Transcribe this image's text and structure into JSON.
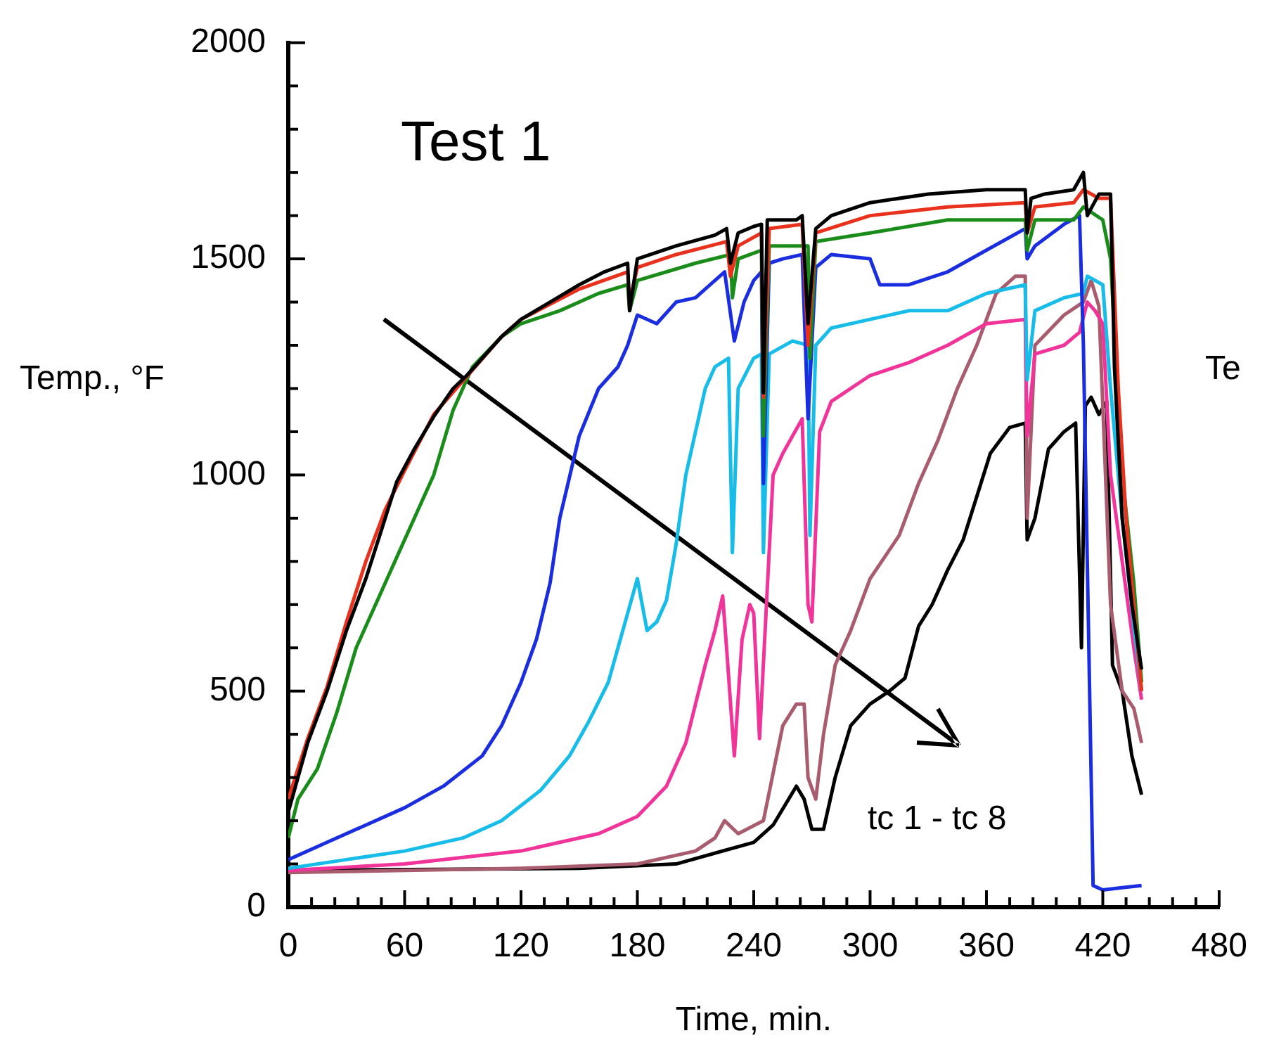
{
  "chart_data": {
    "type": "line",
    "title": "Test 1",
    "xlabel": "Time, min.",
    "ylabel": "Temp., °F",
    "annotations": [
      "tc 1 - tc 8",
      "Te"
    ],
    "xlim": [
      0,
      480
    ],
    "ylim": [
      0,
      2000
    ],
    "xticks": [
      0,
      {
        "value": 12,
        "label": null
      },
      {
        "value": 24,
        "label": null
      },
      {
        "value": 36,
        "label": null
      },
      {
        "value": 48,
        "label": null
      },
      60,
      {
        "value": 72,
        "label": null
      },
      {
        "value": 84,
        "label": null
      },
      {
        "value": 96,
        "label": null
      },
      {
        "value": 108,
        "label": null
      },
      120,
      {
        "value": 132,
        "label": null
      },
      {
        "value": 144,
        "label": null
      },
      {
        "value": 156,
        "label": null
      },
      {
        "value": 168,
        "label": null
      },
      180,
      {
        "value": 192,
        "label": null
      },
      {
        "value": 204,
        "label": null
      },
      {
        "value": 216,
        "label": null
      },
      {
        "value": 228,
        "label": null
      },
      240,
      {
        "value": 252,
        "label": null
      },
      {
        "value": 264,
        "label": null
      },
      {
        "value": 276,
        "label": null
      },
      {
        "value": 288,
        "label": null
      },
      300,
      {
        "value": 312,
        "label": null
      },
      {
        "value": 324,
        "label": null
      },
      {
        "value": 336,
        "label": null
      },
      {
        "value": 348,
        "label": null
      },
      360,
      {
        "value": 372,
        "label": null
      },
      {
        "value": 384,
        "label": null
      },
      {
        "value": 396,
        "label": null
      },
      {
        "value": 408,
        "label": null
      },
      420,
      {
        "value": 432,
        "label": null
      },
      {
        "value": 444,
        "label": null
      },
      {
        "value": 456,
        "label": null
      },
      {
        "value": 468,
        "label": null
      },
      480
    ],
    "yticks": [
      0,
      {
        "value": 100,
        "label": null
      },
      {
        "value": 200,
        "label": null
      },
      {
        "value": 300,
        "label": null
      },
      {
        "value": 400,
        "label": null
      },
      500,
      {
        "value": 600,
        "label": null
      },
      {
        "value": 700,
        "label": null
      },
      {
        "value": 800,
        "label": null
      },
      {
        "value": 900,
        "label": null
      },
      1000,
      {
        "value": 1100,
        "label": null
      },
      {
        "value": 1200,
        "label": null
      },
      {
        "value": 1300,
        "label": null
      },
      {
        "value": 1400,
        "label": null
      },
      1500,
      {
        "value": 1600,
        "label": null
      },
      {
        "value": 1700,
        "label": null
      },
      {
        "value": 1800,
        "label": null
      },
      {
        "value": 1900,
        "label": null
      },
      2000
    ],
    "grid": false,
    "legend": false,
    "marker": "none",
    "line_style": "solid",
    "series": [
      {
        "color": "#000000",
        "x": [
          0,
          5,
          10,
          20,
          30,
          40,
          50,
          56,
          65,
          75,
          85,
          92,
          100,
          110,
          120,
          135,
          150,
          163,
          175,
          176,
          180,
          200,
          220,
          226,
          228,
          232,
          240,
          244,
          245,
          247,
          252,
          262,
          265,
          268,
          272,
          280,
          300,
          330,
          360,
          380,
          381,
          383,
          390,
          405,
          410,
          412,
          418,
          424,
          426,
          430,
          435,
          440
        ],
        "values": [
          220,
          300,
          380,
          500,
          640,
          760,
          900,
          985,
          1060,
          1135,
          1200,
          1230,
          1270,
          1320,
          1360,
          1400,
          1440,
          1470,
          1490,
          1380,
          1500,
          1530,
          1555,
          1570,
          1490,
          1560,
          1575,
          1580,
          1190,
          1590,
          1590,
          1590,
          1600,
          1350,
          1570,
          1600,
          1630,
          1650,
          1660,
          1660,
          1560,
          1640,
          1650,
          1660,
          1700,
          1600,
          1650,
          1650,
          1250,
          900,
          700,
          550
        ]
      },
      {
        "color": "#e8321e",
        "x": [
          0,
          10,
          20,
          30,
          40,
          50,
          60,
          75,
          110,
          120,
          150,
          175,
          176,
          180,
          200,
          226,
          228,
          232,
          244,
          245,
          248,
          265,
          268,
          272,
          300,
          340,
          380,
          381,
          385,
          405,
          410,
          418,
          424,
          428,
          432,
          436,
          440
        ],
        "values": [
          250,
          390,
          510,
          660,
          800,
          920,
          1010,
          1140,
          1320,
          1360,
          1430,
          1470,
          1400,
          1480,
          1510,
          1540,
          1460,
          1530,
          1560,
          1180,
          1570,
          1580,
          1300,
          1560,
          1600,
          1620,
          1630,
          1560,
          1620,
          1630,
          1660,
          1640,
          1640,
          1200,
          900,
          700,
          500
        ]
      },
      {
        "color": "#1a8c1a",
        "x": [
          0,
          5,
          15,
          25,
          35,
          45,
          60,
          75,
          85,
          95,
          110,
          120,
          140,
          160,
          175,
          176,
          180,
          210,
          228,
          229,
          232,
          244,
          245,
          248,
          268,
          269,
          272,
          300,
          340,
          380,
          381,
          385,
          405,
          410,
          420,
          424,
          430,
          436,
          440
        ],
        "values": [
          160,
          250,
          320,
          450,
          600,
          700,
          850,
          1000,
          1150,
          1250,
          1320,
          1350,
          1380,
          1420,
          1440,
          1380,
          1450,
          1490,
          1510,
          1410,
          1500,
          1520,
          1090,
          1530,
          1530,
          1270,
          1540,
          1560,
          1590,
          1590,
          1520,
          1590,
          1590,
          1620,
          1590,
          1500,
          1000,
          750,
          520
        ]
      },
      {
        "color": "#1a2ee0",
        "x": [
          0,
          20,
          40,
          60,
          80,
          100,
          110,
          120,
          128,
          135,
          140,
          150,
          160,
          170,
          175,
          180,
          190,
          200,
          210,
          220,
          225,
          230,
          235,
          240,
          244,
          245,
          248,
          255,
          265,
          268,
          272,
          280,
          300,
          305,
          320,
          340,
          360,
          380,
          381,
          385,
          400,
          408,
          410,
          415,
          420,
          430,
          440
        ],
        "values": [
          110,
          150,
          190,
          230,
          280,
          350,
          420,
          520,
          620,
          750,
          900,
          1090,
          1200,
          1250,
          1300,
          1370,
          1350,
          1400,
          1410,
          1450,
          1470,
          1310,
          1400,
          1450,
          1470,
          980,
          1490,
          1500,
          1510,
          1130,
          1480,
          1510,
          1500,
          1440,
          1440,
          1470,
          1520,
          1570,
          1500,
          1530,
          1580,
          1600,
          1300,
          50,
          40,
          45,
          50
        ]
      },
      {
        "color": "#17bde8",
        "x": [
          0,
          30,
          60,
          90,
          110,
          130,
          145,
          155,
          165,
          170,
          175,
          180,
          185,
          190,
          195,
          200,
          205,
          210,
          215,
          220,
          227,
          229,
          232,
          240,
          244,
          245,
          248,
          260,
          268,
          269,
          272,
          280,
          300,
          320,
          340,
          360,
          380,
          381,
          385,
          400,
          410,
          412,
          420,
          424,
          430,
          436,
          440
        ],
        "values": [
          90,
          110,
          130,
          160,
          200,
          270,
          350,
          430,
          520,
          600,
          680,
          760,
          640,
          660,
          710,
          840,
          1000,
          1100,
          1200,
          1250,
          1270,
          820,
          1200,
          1270,
          1280,
          820,
          1280,
          1310,
          1300,
          860,
          1300,
          1340,
          1360,
          1380,
          1380,
          1420,
          1440,
          1220,
          1380,
          1410,
          1420,
          1460,
          1440,
          1200,
          900,
          650,
          500
        ]
      },
      {
        "color": "#f0349a",
        "x": [
          0,
          60,
          120,
          160,
          180,
          195,
          205,
          215,
          220,
          224,
          226,
          230,
          234,
          238,
          240,
          243,
          246,
          250,
          255,
          265,
          268,
          270,
          274,
          280,
          300,
          320,
          340,
          360,
          380,
          381,
          385,
          400,
          408,
          412,
          416,
          420,
          424,
          430,
          436,
          440
        ],
        "values": [
          85,
          100,
          130,
          170,
          210,
          280,
          380,
          560,
          640,
          720,
          600,
          350,
          620,
          700,
          680,
          390,
          650,
          1000,
          1050,
          1130,
          700,
          660,
          1100,
          1170,
          1230,
          1260,
          1300,
          1350,
          1360,
          1090,
          1280,
          1300,
          1330,
          1400,
          1380,
          1350,
          1000,
          800,
          600,
          480
        ]
      },
      {
        "color": "#a85c6e",
        "x": [
          0,
          120,
          180,
          210,
          220,
          225,
          232,
          245,
          250,
          255,
          262,
          266,
          268,
          272,
          276,
          282,
          290,
          300,
          315,
          325,
          335,
          345,
          355,
          365,
          375,
          380,
          381,
          385,
          400,
          410,
          414,
          418,
          424,
          430,
          436,
          440
        ],
        "values": [
          80,
          90,
          100,
          130,
          160,
          200,
          170,
          200,
          310,
          420,
          470,
          470,
          300,
          250,
          400,
          560,
          640,
          760,
          860,
          980,
          1080,
          1200,
          1300,
          1420,
          1460,
          1460,
          900,
          1300,
          1370,
          1400,
          1450,
          1390,
          700,
          500,
          460,
          380
        ]
      },
      {
        "color": "#000000",
        "x": [
          0,
          150,
          200,
          240,
          250,
          262,
          266,
          270,
          276,
          282,
          290,
          300,
          310,
          318,
          325,
          332,
          340,
          348,
          355,
          362,
          372,
          380,
          381,
          385,
          392,
          400,
          406,
          409,
          411,
          414,
          418,
          422,
          425,
          430,
          435,
          440
        ],
        "values": [
          85,
          90,
          100,
          150,
          190,
          280,
          250,
          180,
          180,
          300,
          420,
          470,
          500,
          530,
          650,
          700,
          780,
          850,
          950,
          1050,
          1110,
          1120,
          850,
          900,
          1060,
          1100,
          1120,
          600,
          1160,
          1180,
          1140,
          1170,
          560,
          500,
          350,
          260
        ]
      }
    ]
  }
}
